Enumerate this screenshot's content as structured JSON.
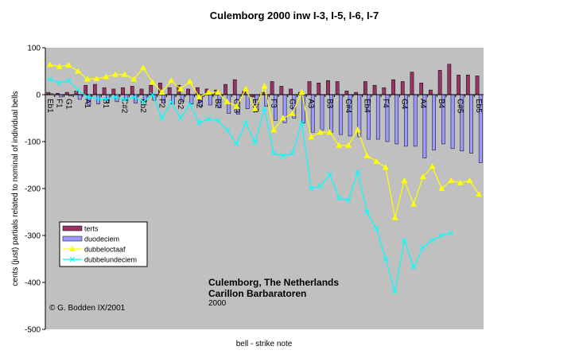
{
  "chart_data": {
    "type": "bar",
    "title": "Culemborg 2000 inw I-3, I-5, I-6, I-7",
    "ylabel": "cents (just) partials related to nominal of individual bells",
    "xlabel": "bell - strike note",
    "annotations": [
      "Culemborg, The Netherlands",
      "Carillon Barbaratoren",
      "2000",
      "© G. Bodden IX/2001"
    ],
    "categories": [
      "Eb1",
      "F1",
      "G1",
      null,
      "A1",
      null,
      "B1",
      null,
      "C#2",
      null,
      "Eb2",
      null,
      "F2",
      null,
      "G2",
      null,
      "A2",
      null,
      "B2",
      null,
      "C#3",
      null,
      "Eb3",
      null,
      "F3",
      null,
      "G3",
      null,
      "A3",
      null,
      "B3",
      null,
      "C#4",
      null,
      "Eb4",
      null,
      "F4",
      null,
      "G4",
      null,
      "A4",
      null,
      "B4",
      null,
      "C#5",
      null,
      "Eb5"
    ],
    "series": [
      {
        "name": "terts",
        "type": "bar",
        "color": "#993366",
        "values": [
          5,
          3,
          5,
          8,
          20,
          22,
          15,
          12,
          15,
          18,
          12,
          20,
          25,
          15,
          20,
          12,
          15,
          12,
          10,
          22,
          32,
          8,
          -5,
          5,
          28,
          18,
          12,
          5,
          28,
          25,
          30,
          28,
          8,
          5,
          28,
          20,
          15,
          32,
          28,
          48,
          25,
          10,
          52,
          65,
          42,
          42,
          40
        ]
      },
      {
        "name": "duodeciem",
        "type": "bar",
        "color": "#9999ff",
        "values": [
          2,
          -5,
          -3,
          -10,
          -22,
          -20,
          -18,
          -15,
          -12,
          -18,
          -15,
          -12,
          -18,
          -20,
          -15,
          -20,
          -25,
          -22,
          -28,
          -40,
          -42,
          -30,
          -35,
          -25,
          -55,
          -60,
          -50,
          -60,
          -80,
          -75,
          -80,
          -85,
          -88,
          -90,
          -95,
          -95,
          -100,
          -105,
          -110,
          -110,
          -135,
          -118,
          -105,
          -115,
          -120,
          -125,
          -145
        ]
      },
      {
        "name": "dubbeloctaaf",
        "type": "line",
        "marker": "triangle",
        "color": "#ffff00",
        "values": [
          64,
          60,
          63,
          50,
          33,
          34,
          38,
          43,
          43,
          33,
          57,
          27,
          5,
          30,
          12,
          28,
          -5,
          5,
          5,
          -15,
          -25,
          12,
          -30,
          18,
          -75,
          -50,
          -40,
          5,
          -90,
          -80,
          -80,
          -108,
          -108,
          -75,
          -130,
          -142,
          -155,
          -262,
          -183,
          -233,
          -175,
          -153,
          -200,
          -183,
          -188,
          -183,
          -212
        ]
      },
      {
        "name": "dubbelundeciem",
        "type": "line",
        "marker": "x",
        "color": "#00ffff",
        "values": [
          33,
          25,
          30,
          10,
          -5,
          -8,
          -10,
          -5,
          -10,
          -5,
          -15,
          0,
          -50,
          -15,
          -50,
          -20,
          -60,
          -52,
          -55,
          -75,
          -105,
          -60,
          -102,
          -30,
          -125,
          -130,
          -125,
          -60,
          -200,
          -195,
          -170,
          -220,
          -225,
          -165,
          -250,
          -285,
          -350,
          -420,
          -310,
          -368,
          -325,
          -310,
          -300,
          -295,
          null,
          null,
          null
        ]
      }
    ],
    "ylim": [
      -500,
      100
    ],
    "yticks": [
      100,
      0,
      -100,
      -200,
      -300,
      -400,
      -500
    ],
    "grid": false,
    "background": "#c0c0c0"
  }
}
